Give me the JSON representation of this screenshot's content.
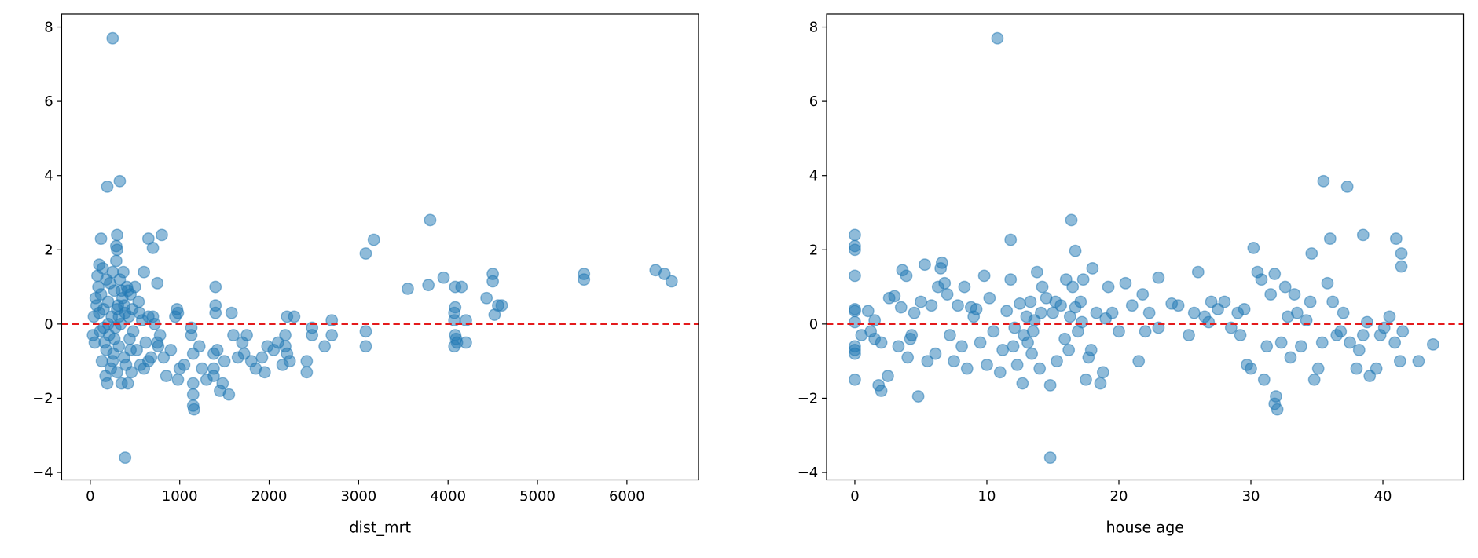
{
  "chart_data": [
    {
      "type": "scatter",
      "xlabel": "dist_mrt",
      "ylabel": "",
      "xlim": [
        -320,
        6800
      ],
      "ylim": [
        -4.2,
        8.35
      ],
      "xticks": [
        0,
        1000,
        2000,
        3000,
        4000,
        5000,
        6000
      ],
      "yticks": [
        -4,
        -2,
        0,
        2,
        4,
        6,
        8
      ],
      "grid": false,
      "reference_line": {
        "y": 0,
        "color": "#e41a1c",
        "style": "dashed"
      },
      "marker_color": "#1f77b4",
      "marker_alpha": 0.5,
      "points": [
        [
          250,
          7.7
        ],
        [
          330,
          3.85
        ],
        [
          190,
          3.7
        ],
        [
          300,
          2.4
        ],
        [
          120,
          2.3
        ],
        [
          650,
          2.3
        ],
        [
          800,
          2.4
        ],
        [
          700,
          2.05
        ],
        [
          290,
          2.1
        ],
        [
          300,
          2.0
        ],
        [
          750,
          1.1
        ],
        [
          3800,
          2.8
        ],
        [
          3170,
          2.27
        ],
        [
          3080,
          1.9
        ],
        [
          3950,
          1.25
        ],
        [
          3780,
          1.05
        ],
        [
          3550,
          0.95
        ],
        [
          4080,
          1.0
        ],
        [
          4150,
          1.0
        ],
        [
          4500,
          1.35
        ],
        [
          4500,
          1.15
        ],
        [
          4430,
          0.7
        ],
        [
          4560,
          0.5
        ],
        [
          4600,
          0.5
        ],
        [
          4520,
          0.25
        ],
        [
          4200,
          0.1
        ],
        [
          4200,
          -0.5
        ],
        [
          4080,
          0.45
        ],
        [
          4070,
          0.3
        ],
        [
          4070,
          0.1
        ],
        [
          4080,
          -0.3
        ],
        [
          4090,
          -0.4
        ],
        [
          4070,
          -0.6
        ],
        [
          4100,
          -0.5
        ],
        [
          5520,
          1.35
        ],
        [
          5520,
          1.2
        ],
        [
          6320,
          1.45
        ],
        [
          6420,
          1.35
        ],
        [
          6500,
          1.15
        ],
        [
          390,
          -3.6
        ],
        [
          3080,
          -0.2
        ],
        [
          3080,
          -0.6
        ],
        [
          2700,
          0.1
        ],
        [
          2700,
          -0.3
        ],
        [
          2620,
          -0.6
        ],
        [
          2480,
          -0.1
        ],
        [
          2480,
          -0.3
        ],
        [
          2420,
          -1.0
        ],
        [
          2420,
          -1.3
        ],
        [
          2280,
          0.2
        ],
        [
          2200,
          0.2
        ],
        [
          2180,
          -0.3
        ],
        [
          2180,
          -0.6
        ],
        [
          2200,
          -0.8
        ],
        [
          2230,
          -1.0
        ],
        [
          2150,
          -1.1
        ],
        [
          2100,
          -0.5
        ],
        [
          2050,
          -0.7
        ],
        [
          1980,
          -0.6
        ],
        [
          1950,
          -1.3
        ],
        [
          1920,
          -0.9
        ],
        [
          1850,
          -1.2
        ],
        [
          1800,
          -1.0
        ],
        [
          1750,
          -0.3
        ],
        [
          1720,
          -0.8
        ],
        [
          1700,
          -0.5
        ],
        [
          1650,
          -0.9
        ],
        [
          1600,
          -0.3
        ],
        [
          1580,
          0.3
        ],
        [
          1550,
          -1.9
        ],
        [
          1500,
          -1.0
        ],
        [
          1480,
          -1.6
        ],
        [
          1450,
          -1.8
        ],
        [
          1420,
          -0.7
        ],
        [
          1400,
          1.0
        ],
        [
          1400,
          0.5
        ],
        [
          1400,
          0.3
        ],
        [
          1380,
          -0.8
        ],
        [
          1380,
          -1.2
        ],
        [
          1380,
          -1.4
        ],
        [
          1300,
          -1.5
        ],
        [
          1250,
          -1.2
        ],
        [
          1220,
          -0.6
        ],
        [
          1160,
          -2.3
        ],
        [
          1150,
          -2.2
        ],
        [
          1150,
          -1.9
        ],
        [
          1150,
          -1.6
        ],
        [
          1150,
          -0.8
        ],
        [
          1130,
          -0.3
        ],
        [
          1130,
          -0.1
        ],
        [
          1050,
          -1.1
        ],
        [
          1000,
          -1.2
        ],
        [
          980,
          -1.5
        ],
        [
          970,
          0.4
        ],
        [
          980,
          0.3
        ],
        [
          950,
          0.2
        ],
        [
          900,
          -0.7
        ],
        [
          850,
          -1.4
        ],
        [
          820,
          -0.9
        ],
        [
          780,
          -0.3
        ],
        [
          750,
          -0.5
        ],
        [
          700,
          0.2
        ],
        [
          650,
          -1.0
        ],
        [
          600,
          -1.2
        ],
        [
          60,
          0.7
        ],
        [
          70,
          0.5
        ],
        [
          80,
          1.3
        ],
        [
          90,
          1.0
        ],
        [
          100,
          1.6
        ],
        [
          100,
          0.3
        ],
        [
          110,
          -0.2
        ],
        [
          120,
          0.8
        ],
        [
          130,
          -1.0
        ],
        [
          140,
          1.5
        ],
        [
          150,
          0.4
        ],
        [
          160,
          -0.5
        ],
        [
          170,
          -1.4
        ],
        [
          180,
          1.2
        ],
        [
          190,
          -1.6
        ],
        [
          200,
          0.6
        ],
        [
          210,
          -0.3
        ],
        [
          220,
          1.1
        ],
        [
          230,
          -1.2
        ],
        [
          240,
          0.2
        ],
        [
          250,
          1.4
        ],
        [
          260,
          -0.8
        ],
        [
          270,
          0.9
        ],
        [
          280,
          -0.1
        ],
        [
          290,
          1.7
        ],
        [
          300,
          -1.3
        ],
        [
          310,
          0.5
        ],
        [
          320,
          -0.6
        ],
        [
          330,
          1.2
        ],
        [
          340,
          0.0
        ],
        [
          350,
          -1.6
        ],
        [
          360,
          0.7
        ],
        [
          370,
          1.4
        ],
        [
          380,
          -0.9
        ],
        [
          390,
          0.3
        ],
        [
          400,
          -1.1
        ],
        [
          410,
          1.0
        ],
        [
          420,
          -1.6
        ],
        [
          430,
          0.2
        ],
        [
          440,
          -0.4
        ],
        [
          450,
          0.8
        ],
        [
          460,
          -1.3
        ],
        [
          470,
          0.4
        ],
        [
          480,
          -0.2
        ],
        [
          500,
          1.0
        ],
        [
          520,
          -0.7
        ],
        [
          540,
          0.6
        ],
        [
          560,
          -1.1
        ],
        [
          580,
          0.1
        ],
        [
          600,
          1.4
        ],
        [
          620,
          -0.5
        ],
        [
          650,
          0.2
        ],
        [
          680,
          -0.9
        ],
        [
          720,
          0.0
        ],
        [
          760,
          -0.6
        ],
        [
          30,
          -0.3
        ],
        [
          40,
          0.2
        ],
        [
          50,
          -0.5
        ],
        [
          350,
          0.9
        ],
        [
          270,
          -0.4
        ],
        [
          200,
          0.0
        ],
        [
          150,
          -0.1
        ],
        [
          450,
          -0.7
        ],
        [
          550,
          0.3
        ],
        [
          320,
          0.2
        ],
        [
          380,
          0.5
        ],
        [
          250,
          -1.0
        ],
        [
          180,
          -0.7
        ],
        [
          420,
          0.9
        ],
        [
          300,
          0.4
        ]
      ]
    },
    {
      "type": "scatter",
      "xlabel": "house age",
      "ylabel": "",
      "xlim": [
        -2.14,
        46.1
      ],
      "ylim": [
        -4.2,
        8.35
      ],
      "xticks": [
        0,
        10,
        20,
        30,
        40
      ],
      "yticks": [
        -4,
        -2,
        0,
        2,
        4,
        6,
        8
      ],
      "grid": false,
      "reference_line": {
        "y": 0,
        "color": "#e41a1c",
        "style": "dashed"
      },
      "marker_color": "#1f77b4",
      "marker_alpha": 0.5,
      "points": [
        [
          10.8,
          7.7
        ],
        [
          35.5,
          3.85
        ],
        [
          37.3,
          3.7
        ],
        [
          16.4,
          2.8
        ],
        [
          11.8,
          2.27
        ],
        [
          16.7,
          1.97
        ],
        [
          0,
          2.4
        ],
        [
          0,
          2.1
        ],
        [
          0,
          2.0
        ],
        [
          30.2,
          2.05
        ],
        [
          34.6,
          1.9
        ],
        [
          36,
          2.3
        ],
        [
          38.5,
          2.4
        ],
        [
          41,
          2.3
        ],
        [
          41.4,
          1.9
        ],
        [
          41.4,
          1.55
        ],
        [
          14.8,
          -3.6
        ],
        [
          32,
          -2.3
        ],
        [
          31.8,
          -2.15
        ],
        [
          31.9,
          -1.95
        ],
        [
          4.8,
          -1.95
        ],
        [
          2,
          -1.8
        ],
        [
          1.8,
          -1.65
        ],
        [
          0,
          -1.5
        ],
        [
          42.7,
          -1.0
        ],
        [
          41.3,
          -1.0
        ],
        [
          43.8,
          -0.55
        ],
        [
          40.9,
          -0.5
        ],
        [
          0,
          1.3
        ],
        [
          0,
          0.4
        ],
        [
          0,
          0.35
        ],
        [
          0,
          0.05
        ],
        [
          0,
          -0.6
        ],
        [
          0,
          -0.7
        ],
        [
          0,
          -0.8
        ],
        [
          1,
          0.35
        ],
        [
          1.2,
          -0.2
        ],
        [
          1.5,
          -0.4
        ],
        [
          2,
          -0.5
        ],
        [
          2.5,
          -1.4
        ],
        [
          2.6,
          0.7
        ],
        [
          3,
          0.75
        ],
        [
          3.3,
          -0.6
        ],
        [
          3.5,
          0.45
        ],
        [
          3.6,
          1.45
        ],
        [
          3.9,
          1.3
        ],
        [
          4,
          -0.9
        ],
        [
          4.2,
          -0.4
        ],
        [
          4.5,
          0.3
        ],
        [
          5,
          0.6
        ],
        [
          5.3,
          1.6
        ],
        [
          5.5,
          -1.0
        ],
        [
          5.8,
          0.5
        ],
        [
          6.1,
          -0.8
        ],
        [
          6.3,
          1.0
        ],
        [
          6.5,
          1.5
        ],
        [
          6.6,
          1.65
        ],
        [
          6.8,
          1.1
        ],
        [
          7,
          0.8
        ],
        [
          7.2,
          -0.3
        ],
        [
          7.5,
          -1.0
        ],
        [
          7.8,
          0.5
        ],
        [
          8.1,
          -0.6
        ],
        [
          8.3,
          1.0
        ],
        [
          8.5,
          -1.2
        ],
        [
          8.8,
          0.45
        ],
        [
          9.2,
          0.4
        ],
        [
          9.5,
          -0.5
        ],
        [
          9.8,
          1.3
        ],
        [
          10,
          -1.1
        ],
        [
          10.2,
          0.7
        ],
        [
          10.5,
          -0.2
        ],
        [
          11,
          -1.3
        ],
        [
          11.5,
          0.35
        ],
        [
          11.8,
          1.2
        ],
        [
          12,
          -0.6
        ],
        [
          12.3,
          -1.1
        ],
        [
          12.5,
          0.55
        ],
        [
          12.7,
          -1.6
        ],
        [
          12.8,
          -0.3
        ],
        [
          13,
          0.2
        ],
        [
          13.1,
          -0.5
        ],
        [
          13.3,
          0.6
        ],
        [
          13.4,
          -0.8
        ],
        [
          13.5,
          -0.2
        ],
        [
          13.6,
          0.1
        ],
        [
          13.8,
          1.4
        ],
        [
          14,
          -1.2
        ],
        [
          14.2,
          1.0
        ],
        [
          14.5,
          0.7
        ],
        [
          14.8,
          -1.65
        ],
        [
          15,
          0.3
        ],
        [
          15.3,
          -1.0
        ],
        [
          15.6,
          0.5
        ],
        [
          15.9,
          -0.4
        ],
        [
          16,
          1.2
        ],
        [
          16.2,
          -0.7
        ],
        [
          16.3,
          0.2
        ],
        [
          16.5,
          1.0
        ],
        [
          16.7,
          0.45
        ],
        [
          16.9,
          -0.2
        ],
        [
          17.1,
          0.6
        ],
        [
          17.3,
          1.2
        ],
        [
          17.5,
          -1.5
        ],
        [
          17.7,
          -0.9
        ],
        [
          17.9,
          -0.7
        ],
        [
          18,
          1.5
        ],
        [
          18.3,
          0.3
        ],
        [
          18.6,
          -1.6
        ],
        [
          18.8,
          -1.3
        ],
        [
          19.2,
          1.0
        ],
        [
          19.5,
          0.3
        ],
        [
          20,
          -0.2
        ],
        [
          20.5,
          1.1
        ],
        [
          21,
          0.5
        ],
        [
          21.5,
          -1.0
        ],
        [
          21.8,
          0.8
        ],
        [
          22.3,
          0.3
        ],
        [
          23,
          1.25
        ],
        [
          23,
          -0.1
        ],
        [
          24,
          0.55
        ],
        [
          24.5,
          0.5
        ],
        [
          25.3,
          -0.3
        ],
        [
          25.7,
          0.3
        ],
        [
          26,
          1.4
        ],
        [
          26.5,
          0.2
        ],
        [
          27,
          0.6
        ],
        [
          27.5,
          0.4
        ],
        [
          28,
          0.6
        ],
        [
          28.5,
          -0.1
        ],
        [
          29,
          0.3
        ],
        [
          29.5,
          0.4
        ],
        [
          29.7,
          -1.1
        ],
        [
          30,
          -1.2
        ],
        [
          30.5,
          1.4
        ],
        [
          30.8,
          1.2
        ],
        [
          31,
          -1.5
        ],
        [
          31.2,
          -0.6
        ],
        [
          31.5,
          0.8
        ],
        [
          31.8,
          1.35
        ],
        [
          32.3,
          -0.5
        ],
        [
          32.6,
          1.0
        ],
        [
          33,
          -0.9
        ],
        [
          33.3,
          0.8
        ],
        [
          33.5,
          0.3
        ],
        [
          33.8,
          -0.6
        ],
        [
          34.2,
          0.1
        ],
        [
          34.5,
          0.6
        ],
        [
          34.8,
          -1.5
        ],
        [
          35.1,
          -1.2
        ],
        [
          35.4,
          -0.5
        ],
        [
          35.8,
          1.1
        ],
        [
          36.2,
          0.6
        ],
        [
          36.5,
          -0.3
        ],
        [
          37,
          0.3
        ],
        [
          37.5,
          -0.5
        ],
        [
          38,
          -1.2
        ],
        [
          38.2,
          -0.7
        ],
        [
          38.5,
          -0.3
        ],
        [
          39,
          -1.4
        ],
        [
          39.5,
          -1.2
        ],
        [
          39.8,
          -0.3
        ],
        [
          40.1,
          -0.1
        ],
        [
          40.5,
          0.2
        ],
        [
          41.5,
          -0.2
        ],
        [
          0.5,
          -0.3
        ],
        [
          1.5,
          0.1
        ],
        [
          4.3,
          -0.3
        ],
        [
          9,
          0.2
        ],
        [
          11.2,
          -0.7
        ],
        [
          12.1,
          -0.1
        ],
        [
          14.1,
          0.3
        ],
        [
          15.2,
          0.6
        ],
        [
          17.2,
          0.05
        ],
        [
          19,
          0.15
        ],
        [
          22,
          -0.2
        ],
        [
          26.8,
          0.05
        ],
        [
          29.2,
          -0.3
        ],
        [
          32.8,
          0.2
        ],
        [
          36.8,
          -0.2
        ],
        [
          38.8,
          0.05
        ]
      ]
    }
  ]
}
